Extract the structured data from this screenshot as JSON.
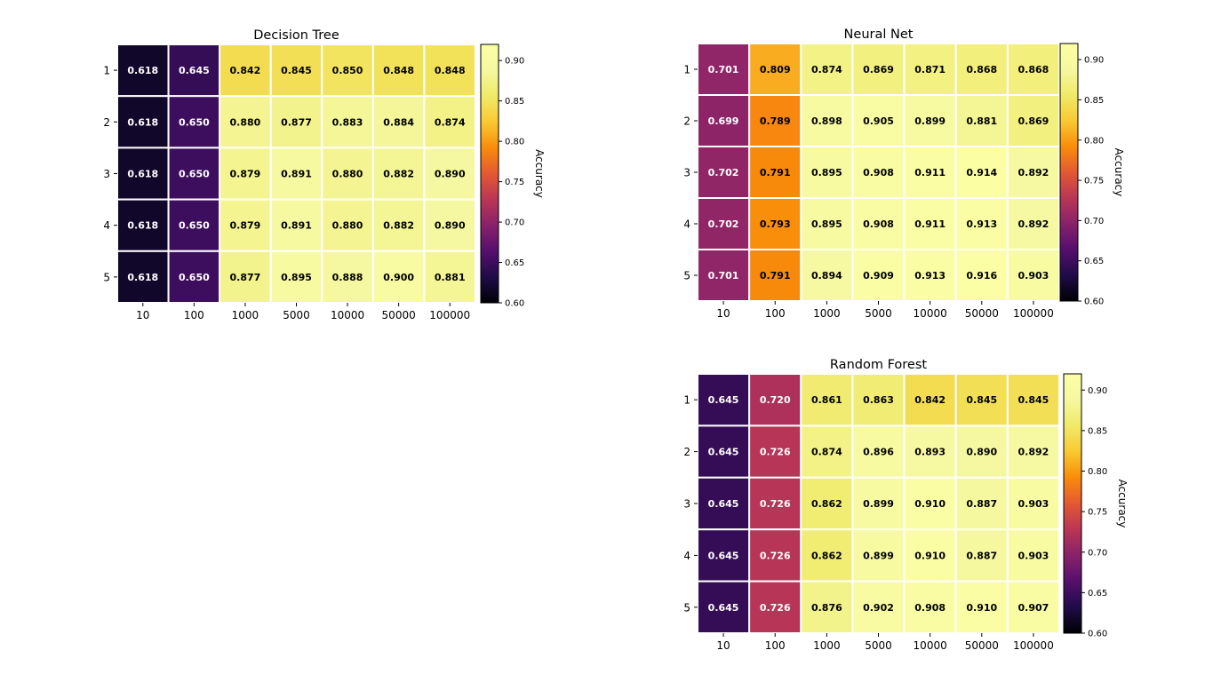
{
  "chart_data": [
    {
      "type": "heatmap",
      "title": "Decision Tree",
      "x_categories": [
        "10",
        "100",
        "1000",
        "5000",
        "10000",
        "50000",
        "100000"
      ],
      "y_categories": [
        "1",
        "2",
        "3",
        "4",
        "5"
      ],
      "values": [
        [
          0.618,
          0.645,
          0.842,
          0.845,
          0.85,
          0.848,
          0.848
        ],
        [
          0.618,
          0.65,
          0.88,
          0.877,
          0.883,
          0.884,
          0.874
        ],
        [
          0.618,
          0.65,
          0.879,
          0.891,
          0.88,
          0.882,
          0.89
        ],
        [
          0.618,
          0.65,
          0.879,
          0.891,
          0.88,
          0.882,
          0.89
        ],
        [
          0.618,
          0.65,
          0.877,
          0.895,
          0.888,
          0.9,
          0.881
        ]
      ],
      "colorbar_label": "Accuracy",
      "colorbar_ticks": [
        "0.60",
        "0.65",
        "0.70",
        "0.75",
        "0.80",
        "0.85",
        "0.90"
      ],
      "vmin": 0.6,
      "vmax": 0.92,
      "colormap": "inferno"
    },
    {
      "type": "heatmap",
      "title": "Neural Net",
      "x_categories": [
        "10",
        "100",
        "1000",
        "5000",
        "10000",
        "50000",
        "100000"
      ],
      "y_categories": [
        "1",
        "2",
        "3",
        "4",
        "5"
      ],
      "values": [
        [
          0.701,
          0.809,
          0.874,
          0.869,
          0.871,
          0.868,
          0.868
        ],
        [
          0.699,
          0.789,
          0.898,
          0.905,
          0.899,
          0.881,
          0.869
        ],
        [
          0.702,
          0.791,
          0.895,
          0.908,
          0.911,
          0.914,
          0.892
        ],
        [
          0.702,
          0.793,
          0.895,
          0.908,
          0.911,
          0.913,
          0.892
        ],
        [
          0.701,
          0.791,
          0.894,
          0.909,
          0.913,
          0.916,
          0.903
        ]
      ],
      "colorbar_label": "Accuracy",
      "colorbar_ticks": [
        "0.60",
        "0.65",
        "0.70",
        "0.75",
        "0.80",
        "0.85",
        "0.90"
      ],
      "vmin": 0.6,
      "vmax": 0.92,
      "colormap": "inferno"
    },
    {
      "type": "heatmap",
      "title": "Random Forest",
      "x_categories": [
        "10",
        "100",
        "1000",
        "5000",
        "10000",
        "50000",
        "100000"
      ],
      "y_categories": [
        "1",
        "2",
        "3",
        "4",
        "5"
      ],
      "values": [
        [
          0.645,
          0.72,
          0.861,
          0.863,
          0.842,
          0.845,
          0.845
        ],
        [
          0.645,
          0.726,
          0.874,
          0.896,
          0.893,
          0.89,
          0.892
        ],
        [
          0.645,
          0.726,
          0.862,
          0.899,
          0.91,
          0.887,
          0.903
        ],
        [
          0.645,
          0.726,
          0.862,
          0.899,
          0.91,
          0.887,
          0.903
        ],
        [
          0.645,
          0.726,
          0.876,
          0.902,
          0.908,
          0.91,
          0.907
        ]
      ],
      "colorbar_label": "Accuracy",
      "colorbar_ticks": [
        "0.60",
        "0.65",
        "0.70",
        "0.75",
        "0.80",
        "0.85",
        "0.90"
      ],
      "vmin": 0.6,
      "vmax": 0.92,
      "colormap": "inferno"
    }
  ]
}
